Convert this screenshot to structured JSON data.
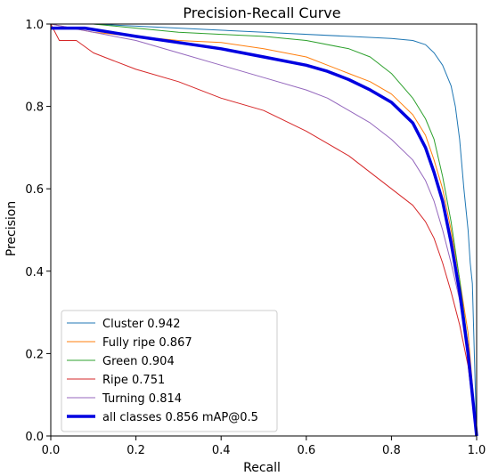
{
  "chart_data": {
    "type": "line",
    "title": "Precision-Recall Curve",
    "xlabel": "Recall",
    "ylabel": "Precision",
    "xlim": [
      0,
      1
    ],
    "ylim": [
      0,
      1
    ],
    "xticks": [
      "0.0",
      "0.2",
      "0.4",
      "0.6",
      "0.8",
      "1.0"
    ],
    "yticks": [
      "0.0",
      "0.2",
      "0.4",
      "0.6",
      "0.8",
      "1.0"
    ],
    "grid": false,
    "legend_position": "bottom-left",
    "series": [
      {
        "name": "Cluster 0.942",
        "color": "#1f77b4",
        "width": "thin",
        "x": [
          0,
          0.1,
          0.3,
          0.5,
          0.7,
          0.8,
          0.85,
          0.88,
          0.9,
          0.92,
          0.94,
          0.95,
          0.96,
          0.97,
          0.98,
          0.985,
          0.99,
          1.0
        ],
        "y": [
          1.0,
          1.0,
          0.99,
          0.98,
          0.97,
          0.965,
          0.96,
          0.95,
          0.93,
          0.9,
          0.85,
          0.8,
          0.72,
          0.6,
          0.5,
          0.42,
          0.37,
          0.0
        ]
      },
      {
        "name": "Fully ripe 0.867",
        "color": "#ff7f0e",
        "width": "thin",
        "x": [
          0,
          0.1,
          0.2,
          0.3,
          0.4,
          0.5,
          0.6,
          0.65,
          0.7,
          0.75,
          0.8,
          0.85,
          0.88,
          0.9,
          0.92,
          0.94,
          0.96,
          0.98,
          1.0
        ],
        "y": [
          1.0,
          0.98,
          0.97,
          0.96,
          0.955,
          0.94,
          0.92,
          0.9,
          0.88,
          0.86,
          0.83,
          0.78,
          0.73,
          0.67,
          0.6,
          0.5,
          0.38,
          0.25,
          0.0
        ]
      },
      {
        "name": "Green 0.904",
        "color": "#2ca02c",
        "width": "thin",
        "x": [
          0,
          0.1,
          0.2,
          0.3,
          0.4,
          0.5,
          0.6,
          0.7,
          0.75,
          0.8,
          0.85,
          0.88,
          0.9,
          0.92,
          0.94,
          0.96,
          0.98,
          1.0
        ],
        "y": [
          1.0,
          1.0,
          0.99,
          0.98,
          0.975,
          0.97,
          0.96,
          0.94,
          0.92,
          0.88,
          0.82,
          0.77,
          0.72,
          0.63,
          0.52,
          0.38,
          0.22,
          0.0
        ]
      },
      {
        "name": "Ripe 0.751",
        "color": "#d62728",
        "width": "thin",
        "x": [
          0,
          0.02,
          0.06,
          0.1,
          0.15,
          0.2,
          0.3,
          0.4,
          0.5,
          0.6,
          0.65,
          0.7,
          0.75,
          0.8,
          0.85,
          0.88,
          0.9,
          0.92,
          0.94,
          0.96,
          0.98,
          1.0
        ],
        "y": [
          1.0,
          0.96,
          0.96,
          0.93,
          0.91,
          0.89,
          0.86,
          0.82,
          0.79,
          0.74,
          0.71,
          0.68,
          0.64,
          0.6,
          0.56,
          0.52,
          0.48,
          0.42,
          0.35,
          0.27,
          0.17,
          0.0
        ]
      },
      {
        "name": "Turning 0.814",
        "color": "#9467bd",
        "width": "thin",
        "x": [
          0,
          0.1,
          0.2,
          0.3,
          0.4,
          0.5,
          0.6,
          0.65,
          0.7,
          0.75,
          0.8,
          0.85,
          0.88,
          0.9,
          0.92,
          0.94,
          0.96,
          0.98,
          1.0
        ],
        "y": [
          1.0,
          0.98,
          0.96,
          0.93,
          0.9,
          0.87,
          0.84,
          0.82,
          0.79,
          0.76,
          0.72,
          0.67,
          0.62,
          0.57,
          0.5,
          0.42,
          0.33,
          0.2,
          0.0
        ]
      },
      {
        "name": "all classes 0.856 mAP@0.5",
        "color": "#0000e0",
        "width": "thick",
        "x": [
          0,
          0.08,
          0.2,
          0.3,
          0.4,
          0.5,
          0.6,
          0.65,
          0.7,
          0.75,
          0.8,
          0.85,
          0.88,
          0.9,
          0.92,
          0.94,
          0.96,
          0.98,
          1.0
        ],
        "y": [
          0.99,
          0.99,
          0.97,
          0.955,
          0.94,
          0.92,
          0.9,
          0.885,
          0.865,
          0.84,
          0.81,
          0.76,
          0.7,
          0.64,
          0.57,
          0.47,
          0.35,
          0.2,
          0.0
        ]
      }
    ]
  }
}
